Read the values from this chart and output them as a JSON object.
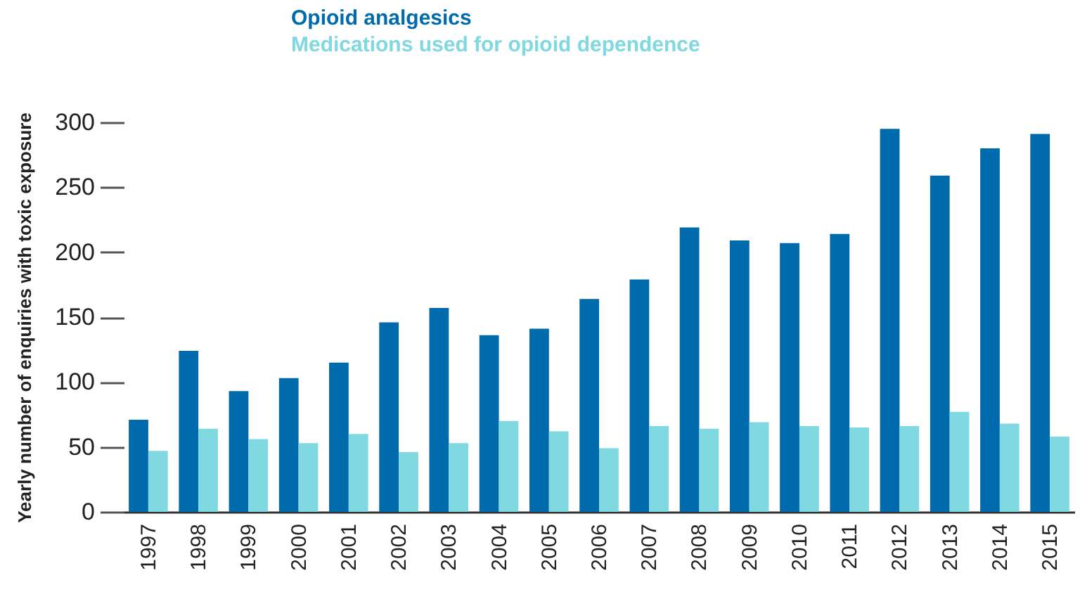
{
  "chart_data": {
    "type": "bar",
    "ylabel": "Yearly number of enquiries with toxic exposure",
    "categories": [
      "1997",
      "1998",
      "1999",
      "2000",
      "2001",
      "2002",
      "2003",
      "2004",
      "2005",
      "2006",
      "2007",
      "2008",
      "2009",
      "2010",
      "2011",
      "2012",
      "2013",
      "2014",
      "2015"
    ],
    "series": [
      {
        "name": "Opioid analgesics",
        "color": "#006bac",
        "values": [
          71,
          124,
          93,
          103,
          115,
          146,
          157,
          136,
          141,
          164,
          179,
          219,
          209,
          207,
          214,
          295,
          259,
          280,
          291
        ]
      },
      {
        "name": "Medications used for opioid dependence",
        "color": "#80d8e0",
        "values": [
          47,
          64,
          56,
          53,
          60,
          46,
          53,
          70,
          62,
          49,
          66,
          64,
          69,
          66,
          65,
          66,
          77,
          68,
          58
        ]
      }
    ],
    "ylim": [
      0,
      300
    ],
    "yticks": [
      0,
      50,
      100,
      150,
      200,
      250,
      300
    ],
    "grid": false,
    "legend": "top left"
  }
}
